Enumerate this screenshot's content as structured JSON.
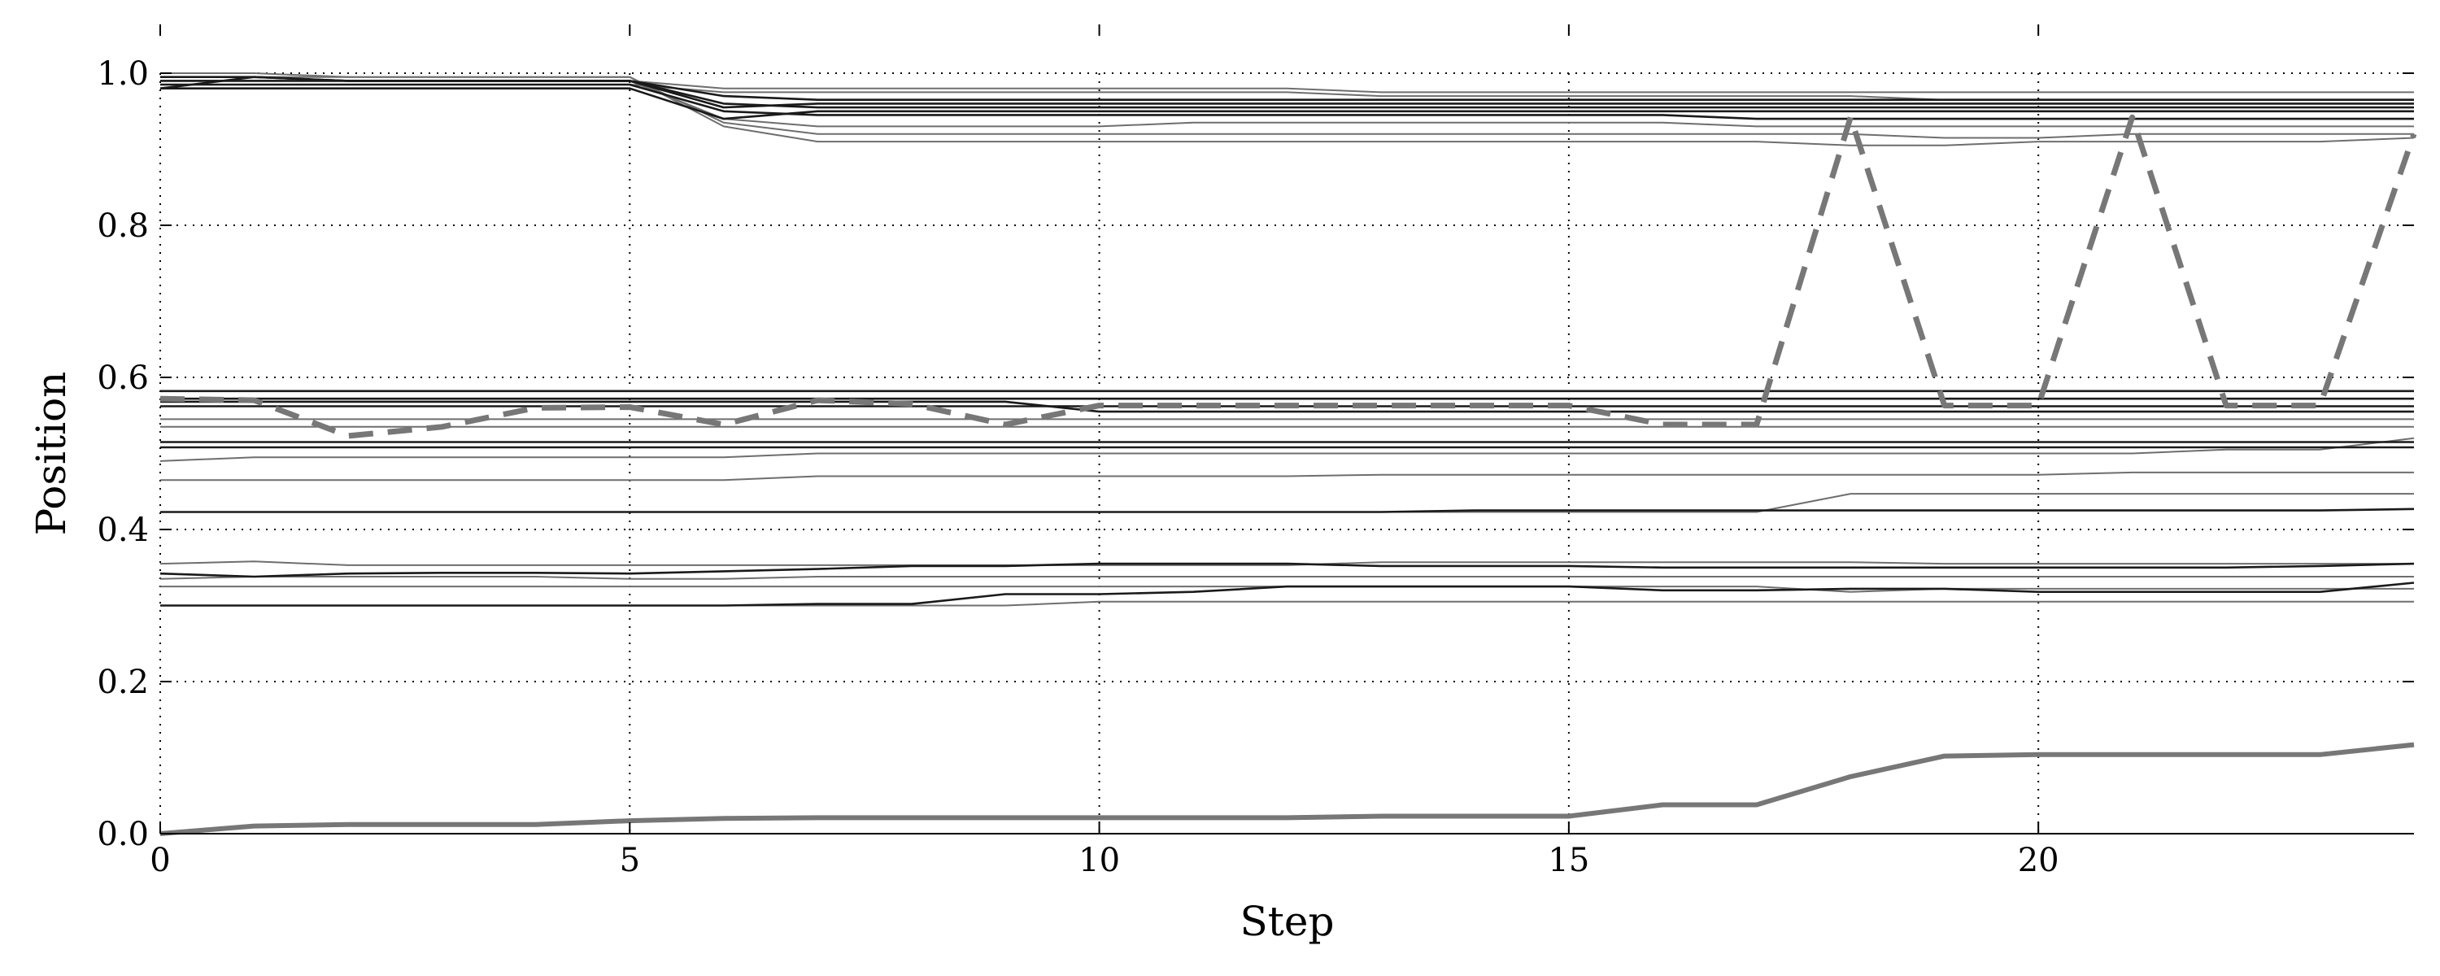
{
  "chart_data": {
    "type": "line",
    "title": "",
    "xlabel": "Step",
    "ylabel": "Position",
    "xlim": [
      0,
      24
    ],
    "ylim": [
      0,
      1.0
    ],
    "xticks": [
      0,
      5,
      10,
      15,
      20
    ],
    "yticks": [
      0.0,
      0.2,
      0.4,
      0.6,
      0.8,
      1.0
    ],
    "xtick_labels": [
      "0",
      "5",
      "10",
      "15",
      "20"
    ],
    "ytick_labels": [
      "0.0",
      "0.2",
      "0.4",
      "0.6",
      "0.8",
      "1.0"
    ],
    "grid": "dotted",
    "legend": "none",
    "x": [
      0,
      1,
      2,
      3,
      4,
      5,
      6,
      7,
      8,
      9,
      10,
      11,
      12,
      13,
      14,
      15,
      16,
      17,
      18,
      19,
      20,
      21,
      22,
      23,
      24
    ],
    "series": [
      {
        "style": "thick-gray",
        "values": [
          0.0,
          0.01,
          0.012,
          0.012,
          0.012,
          0.017,
          0.02,
          0.021,
          0.021,
          0.021,
          0.021,
          0.021,
          0.021,
          0.023,
          0.023,
          0.023,
          0.038,
          0.038,
          0.075,
          0.102,
          0.104,
          0.104,
          0.104,
          0.104,
          0.117
        ]
      },
      {
        "style": "dashed",
        "values": [
          0.572,
          0.57,
          0.523,
          0.535,
          0.56,
          0.561,
          0.538,
          0.57,
          0.565,
          0.538,
          0.563,
          0.563,
          0.563,
          0.563,
          0.563,
          0.563,
          0.538,
          0.538,
          0.942,
          0.563,
          0.563,
          0.942,
          0.563,
          0.563,
          0.92
        ]
      },
      {
        "style": "dark",
        "values": [
          0.98,
          0.995,
          0.99,
          0.99,
          0.99,
          0.99,
          0.96,
          0.955,
          0.955,
          0.955,
          0.955,
          0.955,
          0.955,
          0.955,
          0.955,
          0.955,
          0.955,
          0.955,
          0.955,
          0.955,
          0.955,
          0.955,
          0.955,
          0.955,
          0.955
        ]
      },
      {
        "style": "dark",
        "values": [
          0.98,
          0.98,
          0.98,
          0.98,
          0.98,
          0.98,
          0.94,
          0.95,
          0.95,
          0.95,
          0.95,
          0.95,
          0.95,
          0.95,
          0.95,
          0.95,
          0.95,
          0.95,
          0.95,
          0.95,
          0.95,
          0.95,
          0.95,
          0.95,
          0.95
        ]
      },
      {
        "style": "dark",
        "values": [
          0.985,
          0.985,
          0.985,
          0.985,
          0.985,
          0.985,
          0.95,
          0.945,
          0.945,
          0.945,
          0.945,
          0.945,
          0.945,
          0.945,
          0.945,
          0.945,
          0.945,
          0.94,
          0.94,
          0.94,
          0.94,
          0.94,
          0.94,
          0.94,
          0.94
        ]
      },
      {
        "style": "dark",
        "values": [
          0.995,
          0.995,
          0.99,
          0.99,
          0.99,
          0.99,
          0.955,
          0.96,
          0.96,
          0.96,
          0.96,
          0.96,
          0.96,
          0.96,
          0.96,
          0.96,
          0.96,
          0.96,
          0.96,
          0.96,
          0.96,
          0.96,
          0.96,
          0.96,
          0.96
        ]
      },
      {
        "style": "dark",
        "values": [
          0.99,
          0.99,
          0.99,
          0.99,
          0.99,
          0.99,
          0.97,
          0.965,
          0.965,
          0.965,
          0.965,
          0.965,
          0.965,
          0.965,
          0.965,
          0.965,
          0.965,
          0.965,
          0.965,
          0.965,
          0.965,
          0.965,
          0.965,
          0.965,
          0.965
        ]
      },
      {
        "style": "gray",
        "values": [
          1.0,
          1.0,
          0.995,
          0.995,
          0.995,
          0.995,
          0.93,
          0.91,
          0.91,
          0.91,
          0.91,
          0.91,
          0.91,
          0.91,
          0.91,
          0.91,
          0.91,
          0.91,
          0.905,
          0.905,
          0.91,
          0.91,
          0.91,
          0.91,
          0.915
        ]
      },
      {
        "style": "gray",
        "values": [
          0.995,
          0.995,
          0.995,
          0.995,
          0.995,
          0.995,
          0.935,
          0.92,
          0.92,
          0.92,
          0.92,
          0.92,
          0.92,
          0.92,
          0.92,
          0.92,
          0.92,
          0.92,
          0.92,
          0.915,
          0.915,
          0.92,
          0.92,
          0.92,
          0.92
        ]
      },
      {
        "style": "gray",
        "values": [
          0.99,
          0.99,
          0.99,
          0.99,
          0.99,
          0.99,
          0.94,
          0.93,
          0.93,
          0.93,
          0.93,
          0.935,
          0.935,
          0.935,
          0.935,
          0.935,
          0.935,
          0.93,
          0.93,
          0.93,
          0.93,
          0.93,
          0.93,
          0.93,
          0.93
        ]
      },
      {
        "style": "gray",
        "values": [
          0.985,
          0.985,
          0.985,
          0.985,
          0.985,
          0.985,
          0.975,
          0.975,
          0.975,
          0.975,
          0.975,
          0.975,
          0.975,
          0.97,
          0.97,
          0.97,
          0.97,
          0.97,
          0.97,
          0.965,
          0.965,
          0.965,
          0.965,
          0.965,
          0.965
        ]
      },
      {
        "style": "gray",
        "values": [
          0.99,
          0.99,
          0.99,
          0.99,
          0.99,
          0.99,
          0.98,
          0.98,
          0.98,
          0.98,
          0.98,
          0.98,
          0.98,
          0.975,
          0.975,
          0.975,
          0.975,
          0.975,
          0.975,
          0.975,
          0.975,
          0.975,
          0.975,
          0.975,
          0.975
        ]
      },
      {
        "style": "dark",
        "values": [
          0.582,
          0.582,
          0.582,
          0.582,
          0.582,
          0.582,
          0.582,
          0.582,
          0.582,
          0.582,
          0.582,
          0.582,
          0.582,
          0.582,
          0.582,
          0.582,
          0.582,
          0.582,
          0.582,
          0.582,
          0.582,
          0.582,
          0.582,
          0.582,
          0.582
        ]
      },
      {
        "style": "dark",
        "values": [
          0.572,
          0.572,
          0.572,
          0.572,
          0.572,
          0.572,
          0.572,
          0.572,
          0.572,
          0.572,
          0.572,
          0.572,
          0.572,
          0.572,
          0.572,
          0.572,
          0.572,
          0.572,
          0.572,
          0.572,
          0.572,
          0.572,
          0.572,
          0.572,
          0.572
        ]
      },
      {
        "style": "dark",
        "values": [
          0.568,
          0.568,
          0.568,
          0.568,
          0.568,
          0.568,
          0.568,
          0.568,
          0.568,
          0.568,
          0.555,
          0.555,
          0.555,
          0.555,
          0.555,
          0.555,
          0.555,
          0.555,
          0.555,
          0.555,
          0.555,
          0.555,
          0.555,
          0.555,
          0.555
        ]
      },
      {
        "style": "dark",
        "values": [
          0.562,
          0.562,
          0.562,
          0.562,
          0.562,
          0.562,
          0.562,
          0.562,
          0.562,
          0.562,
          0.562,
          0.562,
          0.562,
          0.562,
          0.562,
          0.562,
          0.562,
          0.562,
          0.562,
          0.562,
          0.562,
          0.562,
          0.562,
          0.562,
          0.562
        ]
      },
      {
        "style": "gray",
        "values": [
          0.545,
          0.545,
          0.545,
          0.545,
          0.545,
          0.545,
          0.545,
          0.545,
          0.545,
          0.545,
          0.545,
          0.545,
          0.545,
          0.545,
          0.545,
          0.545,
          0.545,
          0.545,
          0.545,
          0.545,
          0.545,
          0.545,
          0.545,
          0.545,
          0.545
        ]
      },
      {
        "style": "gray",
        "values": [
          0.535,
          0.535,
          0.535,
          0.535,
          0.535,
          0.535,
          0.535,
          0.535,
          0.535,
          0.535,
          0.535,
          0.535,
          0.535,
          0.535,
          0.535,
          0.535,
          0.535,
          0.535,
          0.535,
          0.535,
          0.535,
          0.535,
          0.535,
          0.535,
          0.535
        ]
      },
      {
        "style": "dark",
        "values": [
          0.515,
          0.515,
          0.515,
          0.515,
          0.515,
          0.515,
          0.515,
          0.515,
          0.515,
          0.515,
          0.515,
          0.515,
          0.515,
          0.515,
          0.515,
          0.515,
          0.515,
          0.515,
          0.515,
          0.515,
          0.515,
          0.515,
          0.515,
          0.515,
          0.515
        ]
      },
      {
        "style": "dark",
        "values": [
          0.508,
          0.508,
          0.508,
          0.508,
          0.508,
          0.508,
          0.508,
          0.508,
          0.508,
          0.508,
          0.508,
          0.508,
          0.508,
          0.508,
          0.508,
          0.508,
          0.508,
          0.508,
          0.508,
          0.508,
          0.508,
          0.508,
          0.508,
          0.508,
          0.508
        ]
      },
      {
        "style": "gray",
        "values": [
          0.49,
          0.495,
          0.495,
          0.495,
          0.495,
          0.495,
          0.495,
          0.5,
          0.5,
          0.5,
          0.5,
          0.5,
          0.5,
          0.5,
          0.5,
          0.5,
          0.5,
          0.5,
          0.5,
          0.5,
          0.5,
          0.5,
          0.505,
          0.505,
          0.52
        ]
      },
      {
        "style": "gray",
        "values": [
          0.465,
          0.465,
          0.465,
          0.465,
          0.465,
          0.465,
          0.465,
          0.47,
          0.47,
          0.47,
          0.47,
          0.47,
          0.47,
          0.472,
          0.472,
          0.472,
          0.472,
          0.472,
          0.472,
          0.472,
          0.472,
          0.475,
          0.475,
          0.475,
          0.475
        ]
      },
      {
        "style": "dark",
        "values": [
          0.423,
          0.423,
          0.423,
          0.423,
          0.423,
          0.423,
          0.423,
          0.423,
          0.423,
          0.423,
          0.423,
          0.423,
          0.423,
          0.423,
          0.425,
          0.425,
          0.425,
          0.425,
          0.425,
          0.425,
          0.425,
          0.425,
          0.425,
          0.425,
          0.427
        ]
      },
      {
        "style": "gray",
        "values": [
          0.423,
          0.423,
          0.423,
          0.423,
          0.423,
          0.423,
          0.423,
          0.423,
          0.423,
          0.423,
          0.423,
          0.423,
          0.423,
          0.423,
          0.423,
          0.423,
          0.423,
          0.423,
          0.447,
          0.447,
          0.447,
          0.447,
          0.447,
          0.447,
          0.447
        ]
      },
      {
        "style": "gray",
        "values": [
          0.355,
          0.358,
          0.353,
          0.353,
          0.353,
          0.353,
          0.353,
          0.353,
          0.353,
          0.353,
          0.353,
          0.353,
          0.353,
          0.357,
          0.357,
          0.357,
          0.357,
          0.357,
          0.357,
          0.355,
          0.355,
          0.355,
          0.355,
          0.355,
          0.355
        ]
      },
      {
        "style": "dark",
        "values": [
          0.342,
          0.338,
          0.342,
          0.343,
          0.343,
          0.342,
          0.345,
          0.348,
          0.352,
          0.352,
          0.355,
          0.355,
          0.355,
          0.352,
          0.352,
          0.352,
          0.35,
          0.35,
          0.35,
          0.35,
          0.35,
          0.35,
          0.35,
          0.352,
          0.355
        ]
      },
      {
        "style": "gray",
        "values": [
          0.335,
          0.338,
          0.338,
          0.338,
          0.338,
          0.335,
          0.335,
          0.338,
          0.338,
          0.338,
          0.338,
          0.338,
          0.338,
          0.338,
          0.338,
          0.338,
          0.338,
          0.338,
          0.338,
          0.338,
          0.338,
          0.338,
          0.338,
          0.338,
          0.338
        ]
      },
      {
        "style": "gray",
        "values": [
          0.325,
          0.325,
          0.325,
          0.325,
          0.325,
          0.325,
          0.325,
          0.325,
          0.325,
          0.325,
          0.325,
          0.325,
          0.325,
          0.325,
          0.325,
          0.325,
          0.325,
          0.325,
          0.318,
          0.322,
          0.322,
          0.322,
          0.322,
          0.322,
          0.322
        ]
      },
      {
        "style": "dark",
        "values": [
          0.3,
          0.3,
          0.3,
          0.3,
          0.3,
          0.3,
          0.3,
          0.302,
          0.302,
          0.315,
          0.315,
          0.318,
          0.325,
          0.325,
          0.325,
          0.325,
          0.32,
          0.32,
          0.322,
          0.322,
          0.318,
          0.318,
          0.318,
          0.318,
          0.33
        ]
      },
      {
        "style": "gray",
        "values": [
          0.3,
          0.3,
          0.3,
          0.3,
          0.3,
          0.3,
          0.3,
          0.3,
          0.3,
          0.3,
          0.305,
          0.305,
          0.305,
          0.305,
          0.305,
          0.305,
          0.305,
          0.305,
          0.305,
          0.305,
          0.305,
          0.305,
          0.305,
          0.305,
          0.305
        ]
      }
    ]
  }
}
